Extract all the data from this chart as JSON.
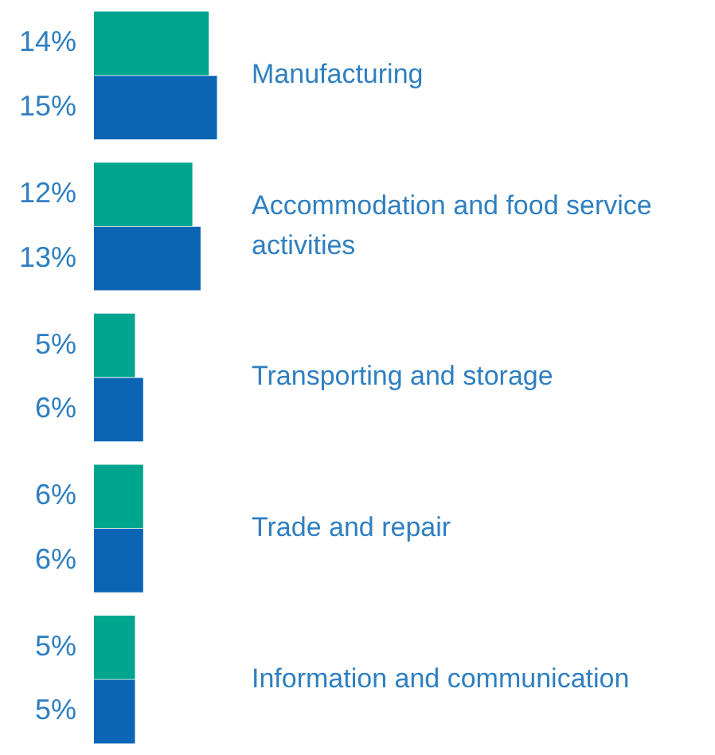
{
  "chart_data": {
    "type": "bar",
    "orientation": "horizontal",
    "categories": [
      "Manufacturing",
      "Accommodation and food service activities",
      "Transporting and storage",
      "Trade and repair",
      "Information and communication"
    ],
    "series": [
      {
        "color": "#00a58e",
        "values": [
          14,
          12,
          5,
          6,
          5
        ],
        "value_labels": [
          "14%",
          "12%",
          "5%",
          "6%",
          "5%"
        ]
      },
      {
        "color": "#0b64b4",
        "values": [
          15,
          13,
          6,
          6,
          5
        ],
        "value_labels": [
          "15%",
          "13%",
          "6%",
          "6%",
          "5%"
        ]
      }
    ],
    "legend": false
  }
}
